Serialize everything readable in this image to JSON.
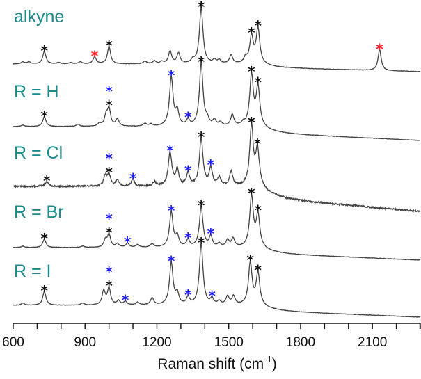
{
  "chart_data": {
    "type": "line",
    "title": "",
    "xlabel": "Raman shift (cm",
    "xlabel_sup": "-1",
    "xlabel_close": ")",
    "ylabel": "",
    "xlim": [
      600,
      2300
    ],
    "xticks": [
      "600",
      "900",
      "1200",
      "1500",
      "1800",
      "2100"
    ],
    "xtick_values": [
      600,
      900,
      1200,
      1500,
      1800,
      2100
    ],
    "minor_tick_step": 100,
    "grid": false,
    "colors": {
      "line": "#444444",
      "label": "#1a8a8a",
      "black_marker": "#111111",
      "blue_marker": "#1a1aff",
      "red_marker": "#ff2020"
    },
    "series": [
      {
        "name": "alkyne",
        "noise": 0.3,
        "background_drop": 11,
        "peaks": [
          [
            640,
            3
          ],
          [
            665,
            3
          ],
          [
            730,
            18
          ],
          [
            790,
            2
          ],
          [
            840,
            2
          ],
          [
            880,
            3
          ],
          [
            940,
            10
          ],
          [
            1000,
            25
          ],
          [
            1150,
            4
          ],
          [
            1190,
            4
          ],
          [
            1220,
            3
          ],
          [
            1255,
            18
          ],
          [
            1290,
            15
          ],
          [
            1350,
            5
          ],
          [
            1385,
            80
          ],
          [
            1440,
            5
          ],
          [
            1460,
            5
          ],
          [
            1510,
            12
          ],
          [
            1570,
            8
          ],
          [
            1595,
            38
          ],
          [
            1622,
            50
          ],
          [
            2130,
            30
          ]
        ],
        "markers": [
          {
            "x": 730,
            "color": "black_marker",
            "stack": 0
          },
          {
            "x": 940,
            "color": "red_marker",
            "stack": 0
          },
          {
            "x": 1000,
            "color": "black_marker",
            "stack": 0
          },
          {
            "x": 1385,
            "color": "black_marker",
            "stack": 0
          },
          {
            "x": 1595,
            "color": "black_marker",
            "stack": 0
          },
          {
            "x": 1622,
            "color": "black_marker",
            "stack": 0
          },
          {
            "x": 2130,
            "color": "red_marker",
            "stack": 0
          }
        ]
      },
      {
        "name": "R = H",
        "noise": 0.3,
        "background_drop": 20,
        "peaks": [
          [
            640,
            2
          ],
          [
            730,
            14
          ],
          [
            870,
            3
          ],
          [
            960,
            4
          ],
          [
            988,
            14
          ],
          [
            1000,
            24
          ],
          [
            1035,
            10
          ],
          [
            1150,
            4
          ],
          [
            1175,
            3
          ],
          [
            1260,
            70
          ],
          [
            1285,
            20
          ],
          [
            1330,
            8
          ],
          [
            1385,
            90
          ],
          [
            1410,
            8
          ],
          [
            1440,
            8
          ],
          [
            1465,
            5
          ],
          [
            1515,
            16
          ],
          [
            1560,
            4
          ],
          [
            1595,
            72
          ],
          [
            1622,
            55
          ]
        ],
        "markers": [
          {
            "x": 730,
            "color": "black_marker",
            "stack": 0
          },
          {
            "x": 1000,
            "color": "black_marker",
            "stack": 0
          },
          {
            "x": 1000,
            "color": "blue_marker",
            "stack": 1
          },
          {
            "x": 1260,
            "color": "blue_marker",
            "stack": 0
          },
          {
            "x": 1330,
            "color": "blue_marker",
            "stack": 0
          },
          {
            "x": 1385,
            "color": "black_marker",
            "stack": 0
          },
          {
            "x": 1595,
            "color": "black_marker",
            "stack": 0
          },
          {
            "x": 1622,
            "color": "black_marker",
            "stack": 0
          }
        ]
      },
      {
        "name": "R = Cl",
        "noise": 1.2,
        "background_drop": 36,
        "peaks": [
          [
            740,
            7
          ],
          [
            985,
            15
          ],
          [
            1000,
            15
          ],
          [
            1035,
            8
          ],
          [
            1100,
            10
          ],
          [
            1190,
            6
          ],
          [
            1255,
            48
          ],
          [
            1285,
            22
          ],
          [
            1330,
            18
          ],
          [
            1385,
            68
          ],
          [
            1425,
            25
          ],
          [
            1460,
            12
          ],
          [
            1510,
            20
          ],
          [
            1595,
            85
          ],
          [
            1620,
            50
          ]
        ],
        "markers": [
          {
            "x": 740,
            "color": "black_marker",
            "stack": 0
          },
          {
            "x": 1000,
            "color": "black_marker",
            "stack": 0
          },
          {
            "x": 1000,
            "color": "blue_marker",
            "stack": 1
          },
          {
            "x": 1100,
            "color": "blue_marker",
            "stack": 0
          },
          {
            "x": 1255,
            "color": "blue_marker",
            "stack": 0
          },
          {
            "x": 1330,
            "color": "blue_marker",
            "stack": 0
          },
          {
            "x": 1385,
            "color": "black_marker",
            "stack": 0
          },
          {
            "x": 1425,
            "color": "blue_marker",
            "stack": 0
          },
          {
            "x": 1595,
            "color": "black_marker",
            "stack": 0
          },
          {
            "x": 1620,
            "color": "black_marker",
            "stack": 0
          }
        ]
      },
      {
        "name": "R = Br",
        "noise": 0.3,
        "background_drop": 18,
        "peaks": [
          [
            640,
            2
          ],
          [
            730,
            12
          ],
          [
            890,
            2
          ],
          [
            985,
            10
          ],
          [
            1000,
            18
          ],
          [
            1035,
            5
          ],
          [
            1077,
            6
          ],
          [
            1120,
            4
          ],
          [
            1180,
            5
          ],
          [
            1260,
            50
          ],
          [
            1285,
            15
          ],
          [
            1330,
            10
          ],
          [
            1385,
            58
          ],
          [
            1425,
            15
          ],
          [
            1460,
            5
          ],
          [
            1495,
            10
          ],
          [
            1518,
            12
          ],
          [
            1595,
            72
          ],
          [
            1622,
            45
          ]
        ],
        "markers": [
          {
            "x": 730,
            "color": "black_marker",
            "stack": 0
          },
          {
            "x": 1000,
            "color": "black_marker",
            "stack": 0
          },
          {
            "x": 1000,
            "color": "blue_marker",
            "stack": 1
          },
          {
            "x": 1077,
            "color": "blue_marker",
            "stack": 0
          },
          {
            "x": 1260,
            "color": "blue_marker",
            "stack": 0
          },
          {
            "x": 1330,
            "color": "blue_marker",
            "stack": 0
          },
          {
            "x": 1385,
            "color": "black_marker",
            "stack": 0
          },
          {
            "x": 1425,
            "color": "blue_marker",
            "stack": 0
          },
          {
            "x": 1595,
            "color": "black_marker",
            "stack": 0
          },
          {
            "x": 1622,
            "color": "black_marker",
            "stack": 0
          }
        ]
      },
      {
        "name": "R = I",
        "noise": 0.3,
        "background_drop": 17,
        "peaks": [
          [
            640,
            3
          ],
          [
            730,
            20
          ],
          [
            890,
            3
          ],
          [
            978,
            20
          ],
          [
            1000,
            24
          ],
          [
            1040,
            6
          ],
          [
            1068,
            5
          ],
          [
            1120,
            4
          ],
          [
            1180,
            10
          ],
          [
            1260,
            60
          ],
          [
            1285,
            15
          ],
          [
            1330,
            10
          ],
          [
            1385,
            88
          ],
          [
            1430,
            8
          ],
          [
            1460,
            5
          ],
          [
            1495,
            12
          ],
          [
            1520,
            12
          ],
          [
            1590,
            60
          ],
          [
            1622,
            45
          ]
        ],
        "markers": [
          {
            "x": 730,
            "color": "black_marker",
            "stack": 0
          },
          {
            "x": 1000,
            "color": "black_marker",
            "stack": 0
          },
          {
            "x": 1000,
            "color": "blue_marker",
            "stack": 1
          },
          {
            "x": 1068,
            "color": "blue_marker",
            "stack": 0
          },
          {
            "x": 1260,
            "color": "blue_marker",
            "stack": 0
          },
          {
            "x": 1330,
            "color": "blue_marker",
            "stack": 0
          },
          {
            "x": 1385,
            "color": "black_marker",
            "stack": 0
          },
          {
            "x": 1430,
            "color": "blue_marker",
            "stack": 0
          },
          {
            "x": 1590,
            "color": "black_marker",
            "stack": 0
          },
          {
            "x": 1622,
            "color": "black_marker",
            "stack": 0
          }
        ]
      }
    ]
  }
}
